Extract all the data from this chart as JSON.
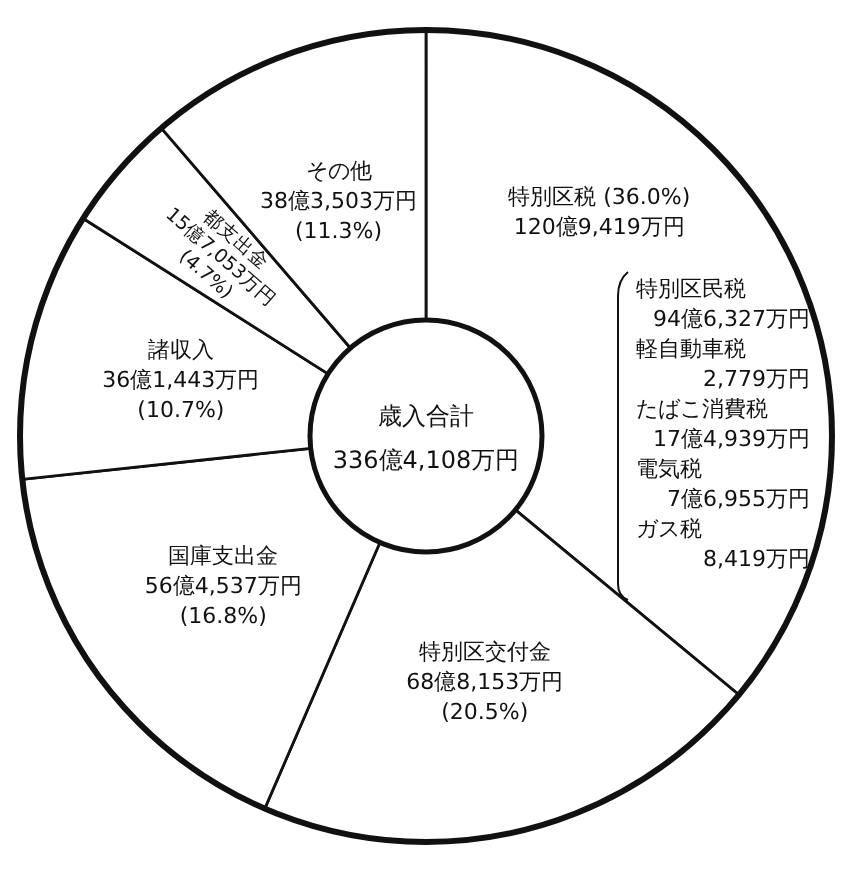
{
  "chart_data": {
    "type": "donut",
    "title": "歳入合計",
    "subtitle": "336億4,108万円",
    "categories": [
      "特別区税",
      "特別区交付金",
      "国庫支出金",
      "諸収入",
      "都支出金",
      "その他"
    ],
    "values": [
      36.0,
      20.5,
      16.8,
      10.7,
      4.7,
      11.3
    ],
    "colors": [
      "#ffffff",
      "#ffffff",
      "#ffffff",
      "#ffffff",
      "#ffffff",
      "#ffffff"
    ],
    "value_labels": [
      "(36.0%)",
      "(20.5%)",
      "(16.8%)",
      "(10.7%)",
      "(4.7%)",
      "(11.3%)"
    ],
    "annotations": [
      {
        "text": "120億9,419万円",
        "x": "特別区税"
      },
      {
        "text": "68億8,153万円",
        "x": "特別区交付金"
      },
      {
        "text": "56億4,537万円",
        "x": "国庫支出金"
      },
      {
        "text": "36億1,443万円",
        "x": "諸収入"
      },
      {
        "text": "15億7,053万円",
        "x": "都支出金"
      },
      {
        "text": "38億3,503万円",
        "x": "その他"
      },
      "特別区民税",
      "94億6,327万円",
      "軽自動車税",
      "2,779万円",
      "たばこ消費税",
      "17億4,939万円",
      "電気税",
      "7億6,955万円",
      "ガス税",
      "8,419万円"
    ]
  }
}
